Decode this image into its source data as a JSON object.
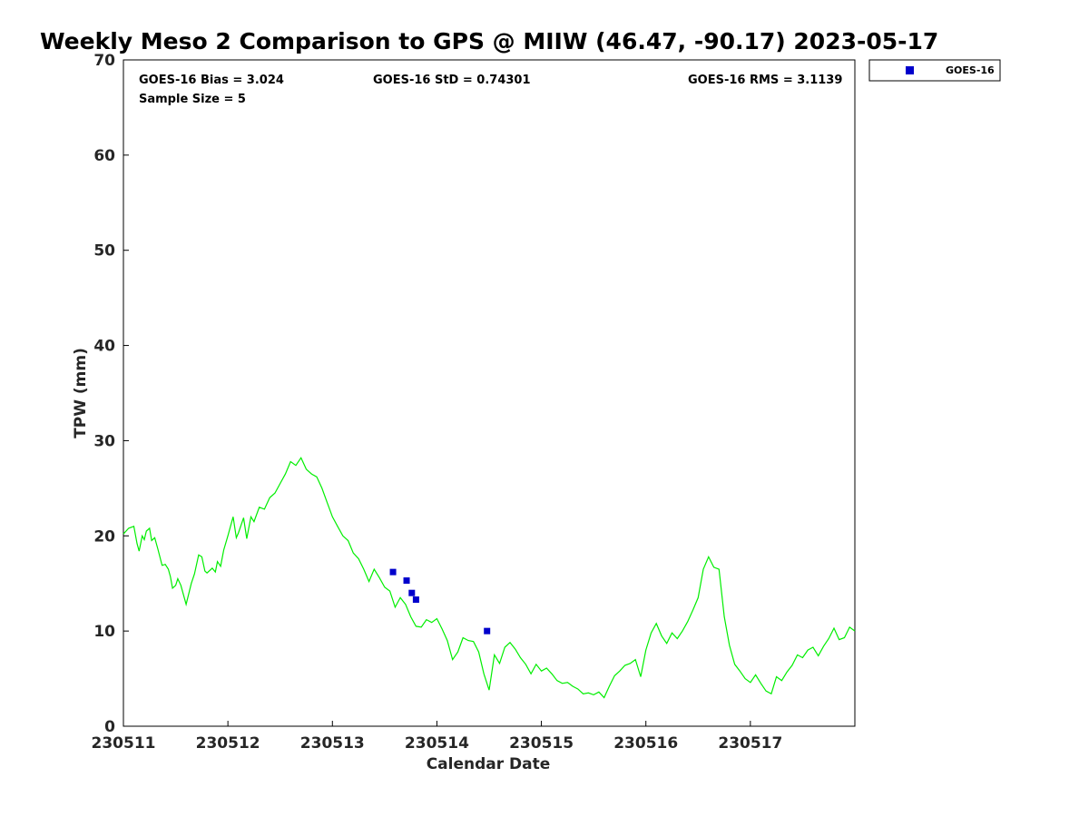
{
  "chart_data": {
    "type": "scatter",
    "title": "Weekly Meso 2 Comparison to GPS @ MIIW (46.47, -90.17) 2023-05-17",
    "xlabel": "Calendar Date",
    "ylabel": "TPW (mm)",
    "xlim": [
      0,
      7
    ],
    "ylim": [
      0,
      70
    ],
    "x_ticks": [
      0,
      1,
      2,
      3,
      4,
      5,
      6
    ],
    "x_tick_labels": [
      "230511",
      "230512",
      "230513",
      "230514",
      "230515",
      "230516",
      "230517"
    ],
    "y_ticks": [
      0,
      10,
      20,
      30,
      40,
      50,
      60,
      70
    ],
    "y_tick_labels": [
      "0",
      "10",
      "20",
      "30",
      "40",
      "50",
      "60",
      "70"
    ],
    "legend_placement": "outside-top-right",
    "stats": {
      "bias": "GOES-16 Bias = 3.024",
      "std": "GOES-16 StD = 0.74301",
      "rms": "GOES-16 RMS = 3.1139",
      "sample_size": "Sample Size = 5"
    },
    "series": [
      {
        "name": "GOES-16",
        "marker": "square",
        "color": "#0000cc",
        "x": [
          2.58,
          2.71,
          2.76,
          2.8,
          3.48
        ],
        "y": [
          16.2,
          15.3,
          14.0,
          13.3,
          10.0
        ]
      },
      {
        "color": "#00ee00",
        "line": true,
        "x": [
          0,
          0.05,
          0.1,
          0.13,
          0.15,
          0.18,
          0.2,
          0.22,
          0.25,
          0.27,
          0.3,
          0.33,
          0.37,
          0.4,
          0.43,
          0.45,
          0.47,
          0.5,
          0.52,
          0.55,
          0.6,
          0.65,
          0.68,
          0.72,
          0.75,
          0.78,
          0.8,
          0.85,
          0.88,
          0.9,
          0.93,
          0.96,
          1.0,
          1.05,
          1.08,
          1.1,
          1.15,
          1.18,
          1.22,
          1.25,
          1.3,
          1.35,
          1.4,
          1.45,
          1.5,
          1.55,
          1.6,
          1.65,
          1.7,
          1.75,
          1.8,
          1.85,
          1.9,
          1.95,
          2.0,
          2.05,
          2.1,
          2.15,
          2.2,
          2.25,
          2.3,
          2.35,
          2.4,
          2.45,
          2.5,
          2.55,
          2.6,
          2.65,
          2.7,
          2.75,
          2.8,
          2.85,
          2.9,
          2.95,
          3.0,
          3.05,
          3.1,
          3.15,
          3.2,
          3.25,
          3.3,
          3.35,
          3.4,
          3.45,
          3.5,
          3.55,
          3.6,
          3.65,
          3.7,
          3.75,
          3.8,
          3.85,
          3.9,
          3.95,
          4.0,
          4.05,
          4.1,
          4.15,
          4.2,
          4.25,
          4.3,
          4.35,
          4.4,
          4.45,
          4.5,
          4.55,
          4.6,
          4.65,
          4.7,
          4.75,
          4.8,
          4.85,
          4.9,
          4.95,
          5.0,
          5.05,
          5.1,
          5.15,
          5.2,
          5.25,
          5.3,
          5.35,
          5.4,
          5.45,
          5.5,
          5.55,
          5.6,
          5.65,
          5.7,
          5.75,
          5.8,
          5.85,
          5.9,
          5.95,
          6.0,
          6.05,
          6.1,
          6.15,
          6.2,
          6.25,
          6.3,
          6.35,
          6.4,
          6.45,
          6.5,
          6.55,
          6.6,
          6.65,
          6.7,
          6.75,
          6.8,
          6.85,
          6.9,
          6.95,
          7.0
        ],
        "y": [
          20.2,
          20.8,
          21.0,
          19.2,
          18.4,
          20.0,
          19.6,
          20.5,
          20.8,
          19.5,
          19.8,
          18.6,
          16.9,
          17.0,
          16.5,
          15.7,
          14.5,
          14.8,
          15.5,
          14.8,
          12.8,
          15.0,
          16.0,
          18.0,
          17.8,
          16.3,
          16.1,
          16.6,
          16.2,
          17.3,
          16.8,
          18.5,
          20.0,
          22.0,
          19.8,
          20.3,
          21.9,
          19.7,
          22.0,
          21.5,
          23.0,
          22.8,
          24.0,
          24.5,
          25.5,
          26.5,
          27.8,
          27.4,
          28.2,
          27.0,
          26.5,
          26.2,
          25.0,
          23.5,
          22.0,
          21.0,
          20.0,
          19.5,
          18.2,
          17.6,
          16.5,
          15.2,
          16.5,
          15.6,
          14.6,
          14.2,
          12.5,
          13.5,
          12.8,
          11.5,
          10.5,
          10.4,
          11.2,
          10.9,
          11.3,
          10.2,
          9.0,
          7.0,
          7.8,
          9.3,
          9.0,
          8.9,
          7.8,
          5.5,
          3.8,
          7.5,
          6.6,
          8.3,
          8.8,
          8.1,
          7.2,
          6.5,
          5.5,
          6.5,
          5.8,
          6.1,
          5.5,
          4.8,
          4.5,
          4.6,
          4.2,
          3.9,
          3.4,
          3.5,
          3.3,
          3.6,
          3.0,
          4.2,
          5.3,
          5.8,
          6.4,
          6.6,
          7.0,
          5.2,
          8.0,
          9.8,
          10.8,
          9.5,
          8.7,
          9.8,
          9.2,
          10.0,
          11.0,
          12.2,
          13.5,
          16.5,
          17.8,
          16.7,
          16.5,
          11.5,
          8.5,
          6.5,
          5.8,
          5.0,
          4.6,
          5.4,
          4.5,
          3.7,
          3.4,
          5.2,
          4.8,
          5.7,
          6.4,
          7.5,
          7.2,
          8.0,
          8.3,
          7.4,
          8.4,
          9.2,
          10.3,
          9.1,
          9.3,
          10.4,
          10.0
        ]
      }
    ]
  }
}
